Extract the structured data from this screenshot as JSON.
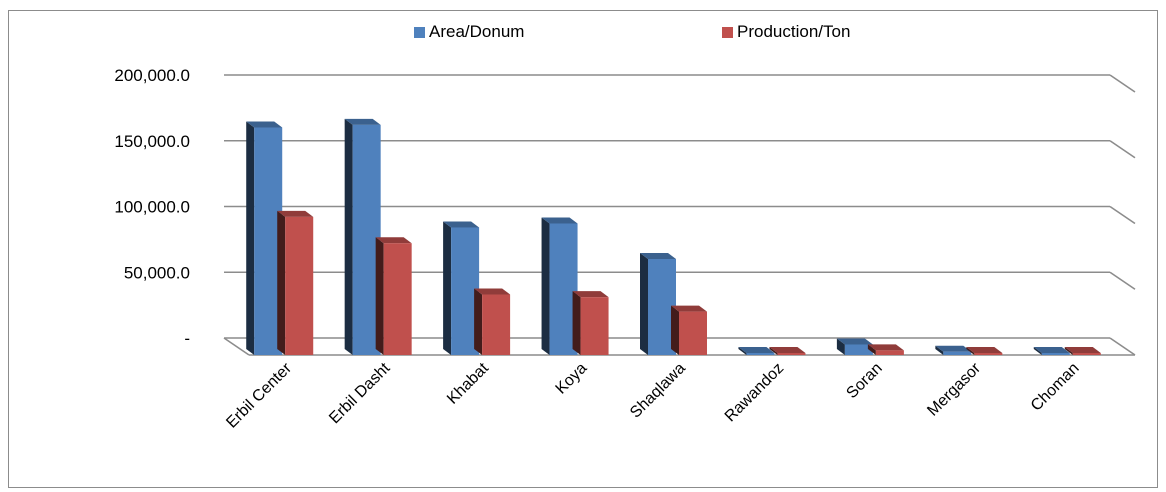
{
  "chart_data": {
    "type": "bar",
    "title": "",
    "xlabel": "",
    "ylabel": "",
    "ylim": [
      0,
      200000
    ],
    "yticks": [
      0,
      50000,
      100000,
      150000,
      200000
    ],
    "ytick_labels": [
      "-",
      "50,000.0",
      "100,000.0",
      "150,000.0",
      "200,000.0"
    ],
    "categories": [
      "Erbil Center",
      "Erbil Dasht",
      "Khabat",
      "Koya",
      "Shaqlawa",
      "Rawandoz",
      "Soran",
      "Mergasor",
      "Choman"
    ],
    "series": [
      {
        "name": "Area/Donum",
        "color": "#4f81bd",
        "values": [
          173000,
          175000,
          97000,
          100000,
          73000,
          1500,
          8000,
          2500,
          1500
        ]
      },
      {
        "name": "Production/Ton",
        "color": "#c0504d",
        "values": [
          105000,
          85000,
          46000,
          44000,
          33000,
          700,
          3500,
          1200,
          800
        ]
      }
    ],
    "grid": true,
    "legend_position": "top",
    "style": "3d-clustered-column"
  }
}
